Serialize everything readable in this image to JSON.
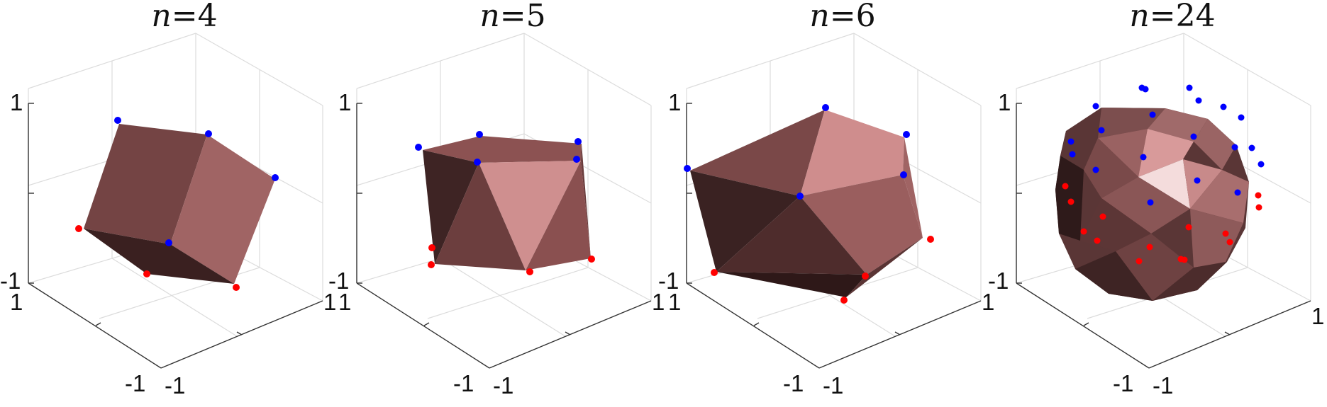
{
  "colors": {
    "face_base": "#9a6464",
    "top_points": "#0000ff",
    "bottom_points": "#ff0000",
    "axis": "#333333",
    "grid": "#d9d9d9"
  },
  "panels": [
    {
      "title_var": "n",
      "title_eq": "=",
      "title_num": "4",
      "z_top": "1",
      "z_bottom": "-1",
      "y_right": "1",
      "x_left": "1",
      "x_bottom": "-1",
      "y_bottom": "-1"
    },
    {
      "title_var": "n",
      "title_eq": "=",
      "title_num": "5",
      "z_top": "1",
      "z_bottom": "-1",
      "y_right": "1",
      "x_left": "1",
      "x_bottom": "-1",
      "y_bottom": "-1"
    },
    {
      "title_var": "n",
      "title_eq": "=",
      "title_num": "6",
      "z_top": "1",
      "z_bottom": "-1",
      "y_right": "1",
      "x_left": "1",
      "x_bottom": "-1",
      "y_bottom": "-1"
    },
    {
      "title_var": "n",
      "title_eq": "=",
      "title_num": "24",
      "z_top": "1",
      "z_bottom": "-1",
      "y_right": "1",
      "x_left": "1",
      "x_bottom": "-1",
      "y_bottom": "-1"
    }
  ]
}
